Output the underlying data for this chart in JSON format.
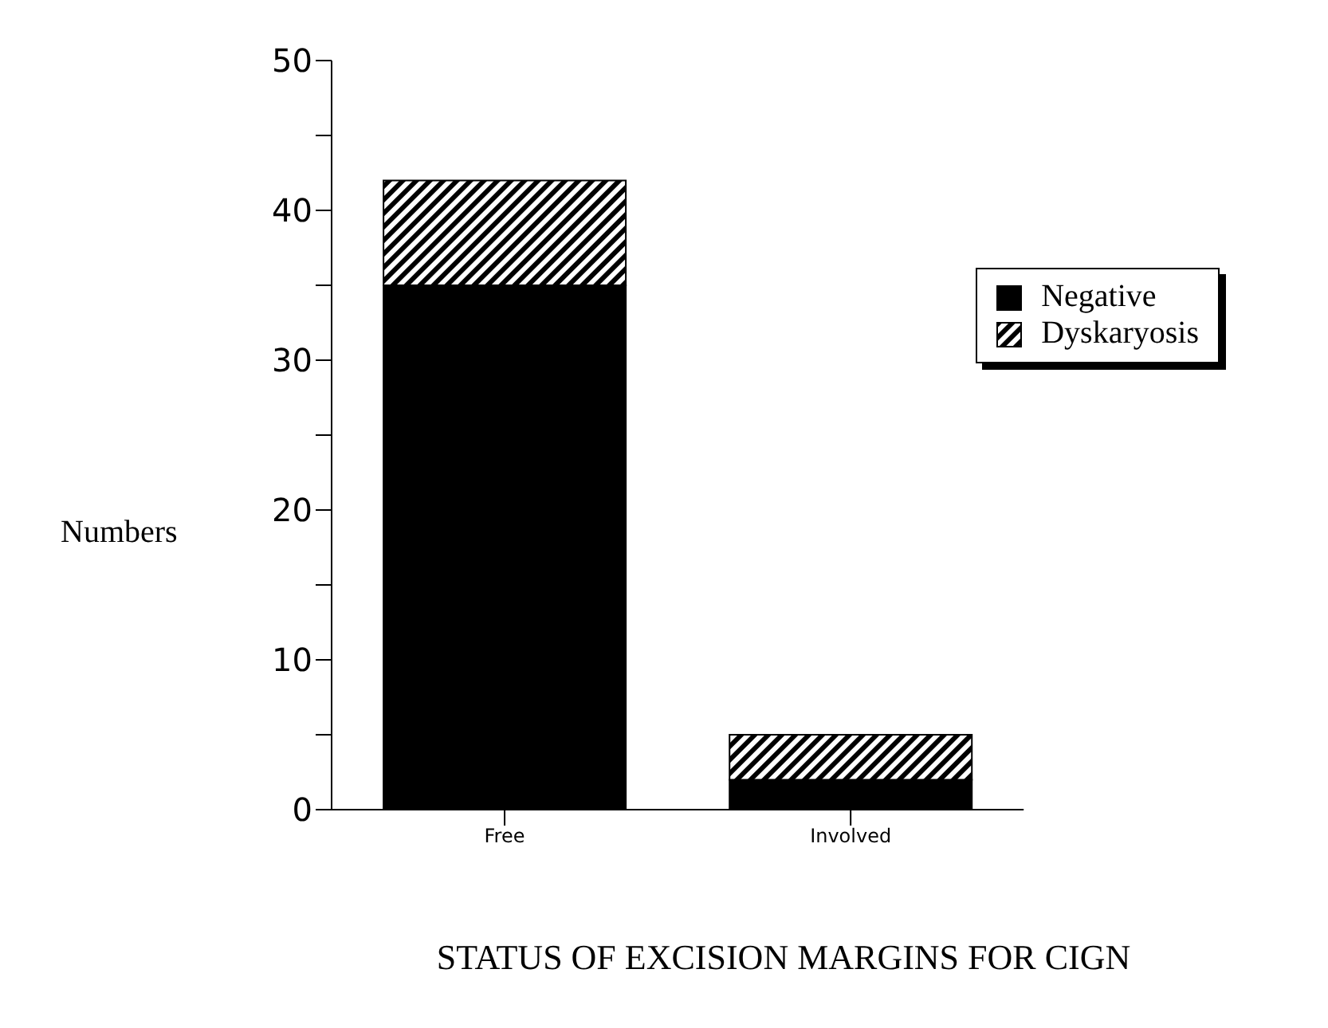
{
  "chart_data": {
    "type": "bar",
    "stacked": true,
    "categories": [
      "Free",
      "Involved"
    ],
    "xlabel": "STATUS OF EXCISION MARGINS FOR CIGN",
    "ylabel": "Numbers",
    "ylim": [
      0,
      50
    ],
    "yticks": [
      0,
      {
        "value": 5,
        "label": null
      },
      10,
      {
        "value": 15,
        "label": null
      },
      20,
      {
        "value": 25,
        "label": null
      },
      30,
      {
        "value": 35,
        "label": null
      },
      40,
      {
        "value": 45,
        "label": null
      },
      50
    ],
    "legend": "top right",
    "grid": false,
    "series": [
      {
        "name": "Negative",
        "color": "#000000",
        "values": [
          35,
          2
        ]
      },
      {
        "name": "Dyskaryosis",
        "color": "#000000",
        "values": [
          7,
          3
        ]
      }
    ]
  }
}
